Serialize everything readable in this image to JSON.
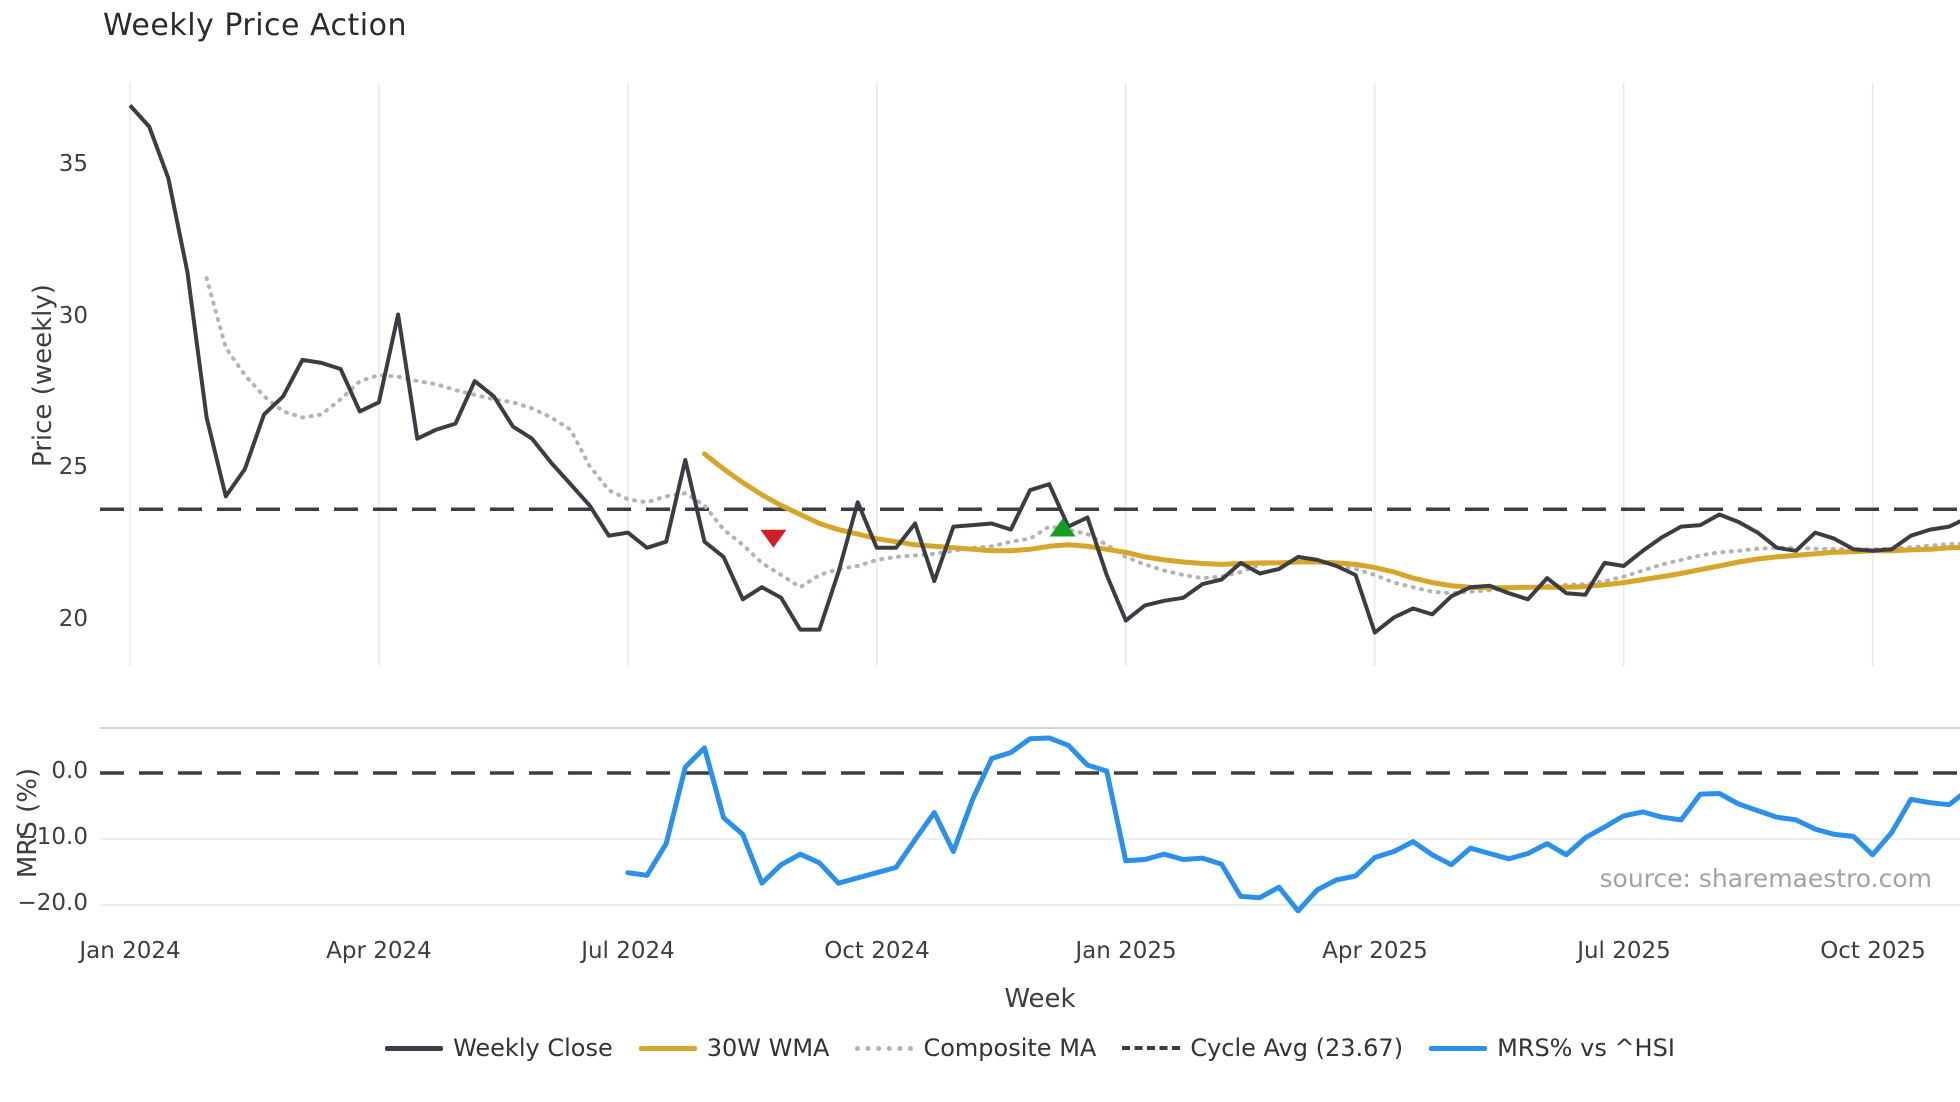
{
  "title": "Weekly Price Action",
  "source_text": "source: sharemaestro.com",
  "colors": {
    "close": "#3a3e44",
    "wma": "#d5a62a",
    "composite": "#b3b3b3",
    "cycle": "#3a3e44",
    "mrs": "#2b90ea",
    "sell_marker": "#d01f26",
    "buy_marker": "#159e24",
    "grid": "#e8e8ec",
    "panel_border": "#c6c6cc"
  },
  "legend": [
    {
      "label": "Weekly Close",
      "style": "solid",
      "color": "#3a3e44"
    },
    {
      "label": "30W WMA",
      "style": "solid",
      "color": "#d5a62a"
    },
    {
      "label": "Composite MA",
      "style": "dotted",
      "color": "#b3b3b3"
    },
    {
      "label": "Cycle Avg (23.67)",
      "style": "dashed",
      "color": "#3a3e44"
    },
    {
      "label": "MRS% vs ^HSI",
      "style": "solid",
      "color": "#2b90ea"
    }
  ],
  "chart_data": [
    {
      "type": "line",
      "panel": "price",
      "title": "Weekly Price Action",
      "xlabel": "Week",
      "ylabel": "Price (weekly)",
      "yticks": [
        35,
        30,
        25,
        20
      ],
      "ylim": [
        18.4,
        37.7
      ],
      "grid": "vertical",
      "cycle_avg": 23.67,
      "series": [
        {
          "name": "Weekly Close",
          "start_week": 0,
          "values": [
            37.0,
            36.3,
            34.6,
            31.5,
            26.7,
            24.1,
            25.0,
            26.8,
            27.4,
            28.6,
            28.5,
            28.3,
            26.9,
            27.2,
            30.1,
            26.0,
            26.3,
            26.5,
            27.9,
            27.4,
            26.4,
            26.0,
            25.2,
            24.5,
            23.8,
            22.8,
            22.9,
            22.4,
            22.6,
            25.3,
            22.6,
            22.1,
            20.7,
            21.1,
            20.75,
            19.7,
            19.7,
            21.6,
            23.9,
            22.4,
            22.4,
            23.2,
            21.3,
            23.1,
            23.15,
            23.2,
            23.0,
            24.3,
            24.5,
            23.1,
            23.4,
            21.5,
            20.0,
            20.5,
            20.65,
            20.75,
            21.2,
            21.35,
            21.9,
            21.55,
            21.7,
            22.1,
            22.0,
            21.8,
            21.5,
            19.6,
            20.1,
            20.4,
            20.2,
            20.8,
            21.1,
            21.15,
            20.9,
            20.7,
            21.4,
            20.9,
            20.85,
            21.9,
            21.8,
            22.3,
            22.75,
            23.1,
            23.15,
            23.5,
            23.25,
            22.9,
            22.4,
            22.3,
            22.9,
            22.7,
            22.35,
            22.3,
            22.35,
            22.8,
            23.0,
            23.1,
            23.4
          ]
        },
        {
          "name": "30W WMA",
          "start_week": 30,
          "values": [
            25.5,
            25.0,
            24.55,
            24.15,
            23.8,
            23.5,
            23.2,
            23.0,
            22.85,
            22.7,
            22.6,
            22.5,
            22.45,
            22.4,
            22.35,
            22.3,
            22.3,
            22.35,
            22.45,
            22.5,
            22.45,
            22.35,
            22.25,
            22.1,
            22.0,
            21.93,
            21.88,
            21.85,
            21.88,
            21.9,
            21.9,
            21.93,
            21.93,
            21.9,
            21.85,
            21.75,
            21.6,
            21.4,
            21.25,
            21.15,
            21.1,
            21.08,
            21.08,
            21.1,
            21.1,
            21.1,
            21.12,
            21.18,
            21.25,
            21.35,
            21.45,
            21.55,
            21.68,
            21.8,
            21.93,
            22.03,
            22.1,
            22.15,
            22.2,
            22.25,
            22.27,
            22.3,
            22.3,
            22.33,
            22.35,
            22.4,
            22.42
          ]
        },
        {
          "name": "Composite MA",
          "start_week": 4,
          "values": [
            31.3,
            29.0,
            28.1,
            27.4,
            26.9,
            26.7,
            26.8,
            27.3,
            27.9,
            28.1,
            28.05,
            27.9,
            27.8,
            27.6,
            27.45,
            27.3,
            27.2,
            27.0,
            26.7,
            26.3,
            25.1,
            24.3,
            24.0,
            23.9,
            24.1,
            24.2,
            23.8,
            23.0,
            22.5,
            21.9,
            21.5,
            21.1,
            21.5,
            21.7,
            21.8,
            22.0,
            22.1,
            22.15,
            22.2,
            22.3,
            22.4,
            22.45,
            22.6,
            22.7,
            23.1,
            23.0,
            22.85,
            22.5,
            22.1,
            21.85,
            21.65,
            21.5,
            21.4,
            21.45,
            21.6,
            21.85,
            21.9,
            21.93,
            21.93,
            21.85,
            21.7,
            21.5,
            21.25,
            21.1,
            20.95,
            20.9,
            20.95,
            21.0,
            21.05,
            21.1,
            21.15,
            21.17,
            21.2,
            21.3,
            21.45,
            21.65,
            21.85,
            22.0,
            22.15,
            22.25,
            22.3,
            22.37,
            22.4,
            22.4,
            22.37,
            22.36,
            22.35,
            22.35,
            22.37,
            22.42,
            22.47,
            22.52,
            22.55
          ]
        }
      ],
      "markers": [
        {
          "kind": "sell",
          "shape": "triangle-down",
          "week": 33.6,
          "value": 22.7,
          "color": "#d01f26"
        },
        {
          "kind": "buy",
          "shape": "triangle-up",
          "week": 48.7,
          "value": 23.07,
          "color": "#159e24"
        }
      ]
    },
    {
      "type": "line",
      "panel": "mrs",
      "xlabel": "Week",
      "ylabel": "MRS (%)",
      "yticks_labels": [
        "0.0",
        "−10.0",
        "−20.0"
      ],
      "yticks": [
        0,
        -10,
        -20
      ],
      "ylim": [
        -22,
        6.8
      ],
      "zero_line": 0,
      "series": [
        {
          "name": "MRS% vs ^HSI",
          "start_week": 26,
          "values": [
            -15.1,
            -15.5,
            -10.7,
            0.9,
            3.8,
            -6.8,
            -9.3,
            -16.7,
            -13.9,
            -12.3,
            -13.6,
            -16.7,
            -15.9,
            -15.1,
            -14.3,
            -10.1,
            -6.0,
            -11.9,
            -4.0,
            2.2,
            3.1,
            5.2,
            5.3,
            4.2,
            1.2,
            0.3,
            -13.3,
            -13.1,
            -12.3,
            -13.1,
            -12.9,
            -13.8,
            -18.7,
            -18.9,
            -17.3,
            -20.9,
            -17.7,
            -16.2,
            -15.6,
            -12.8,
            -11.9,
            -10.4,
            -12.4,
            -13.9,
            -11.4,
            -12.2,
            -13.0,
            -12.2,
            -10.7,
            -12.4,
            -9.8,
            -8.2,
            -6.5,
            -5.9,
            -6.7,
            -7.1,
            -3.2,
            -3.1,
            -4.7,
            -5.7,
            -6.7,
            -7.1,
            -8.5,
            -9.3,
            -9.6,
            -12.4,
            -9.0,
            -4.0,
            -4.5,
            -4.8,
            -2.5
          ]
        }
      ]
    }
  ],
  "x_axis": {
    "label": "Week",
    "tick_weeks": [
      0,
      13,
      26,
      39,
      52,
      65,
      78,
      91
    ],
    "tick_labels": [
      "Jan 2024",
      "Apr 2024",
      "Jul 2024",
      "Oct 2024",
      "Jan 2025",
      "Apr 2025",
      "Jul 2025",
      "Oct 2025"
    ]
  }
}
